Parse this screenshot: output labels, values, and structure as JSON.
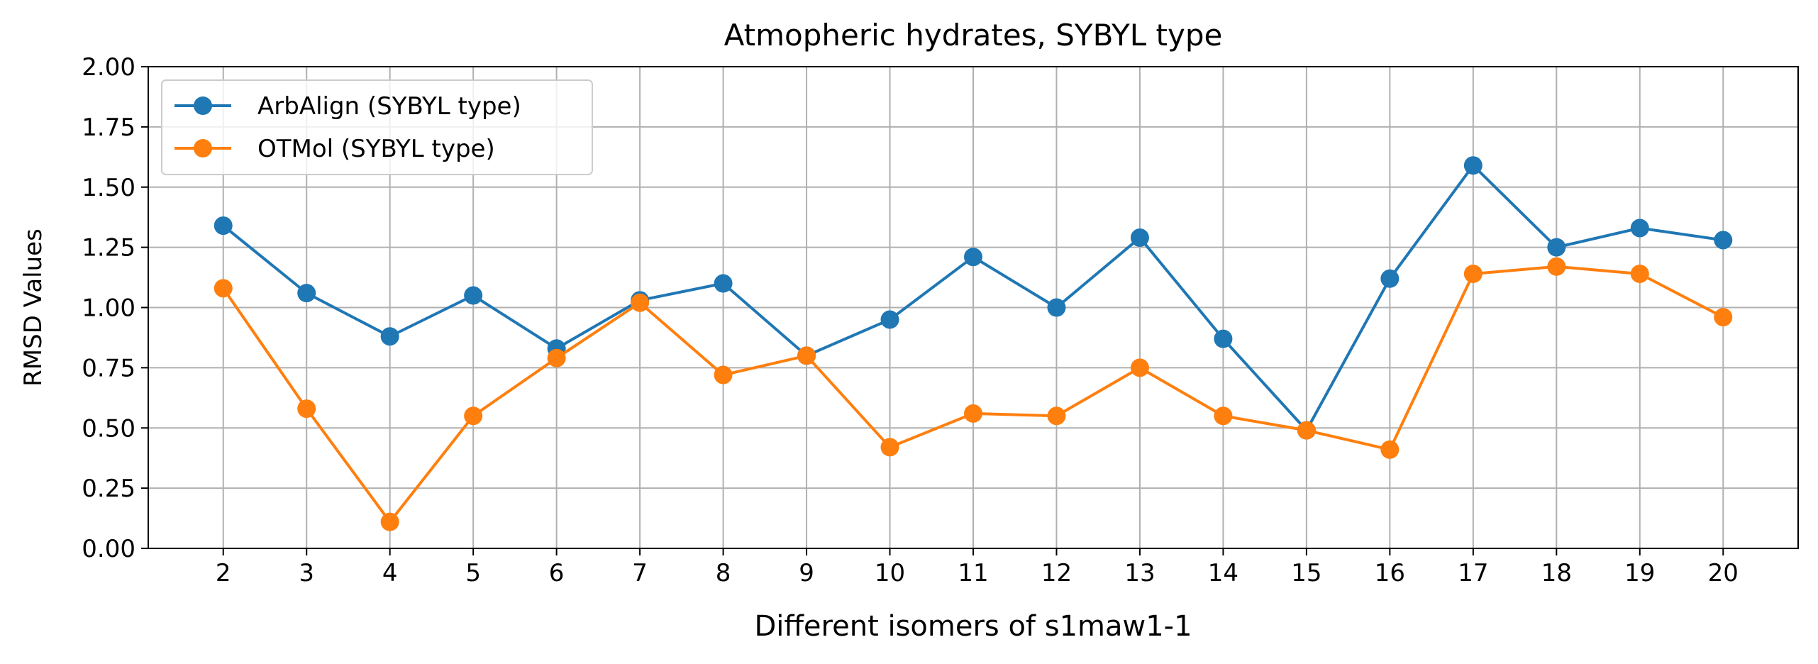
{
  "chart_data": {
    "type": "line",
    "title": "Atmopheric hydrates, SYBYL type",
    "xlabel": "Different isomers of s1maw1-1",
    "ylabel": "RMSD Values",
    "x": [
      2,
      3,
      4,
      5,
      6,
      7,
      8,
      9,
      10,
      11,
      12,
      13,
      14,
      15,
      16,
      17,
      18,
      19,
      20
    ],
    "xlim": [
      1.1,
      20.9
    ],
    "ylim": [
      0,
      2
    ],
    "yticks": [
      "0.00",
      "0.25",
      "0.50",
      "0.75",
      "1.00",
      "1.25",
      "1.50",
      "1.75",
      "2.00"
    ],
    "grid": true,
    "legend_position": "top-left",
    "series": [
      {
        "name": "ArbAlign (SYBYL type)",
        "color": "#1f77b4",
        "marker": "circle",
        "values": [
          1.34,
          1.06,
          0.88,
          1.05,
          0.83,
          1.03,
          1.1,
          0.8,
          0.95,
          1.21,
          1.0,
          1.29,
          0.87,
          0.49,
          1.12,
          1.59,
          1.25,
          1.33,
          1.28
        ]
      },
      {
        "name": "OTMol (SYBYL type)",
        "color": "#ff7f0e",
        "marker": "circle",
        "values": [
          1.08,
          0.58,
          0.11,
          0.55,
          0.79,
          1.02,
          0.72,
          0.8,
          0.42,
          0.56,
          0.55,
          0.75,
          0.55,
          0.49,
          0.41,
          1.14,
          1.17,
          1.14,
          0.96
        ]
      }
    ]
  }
}
